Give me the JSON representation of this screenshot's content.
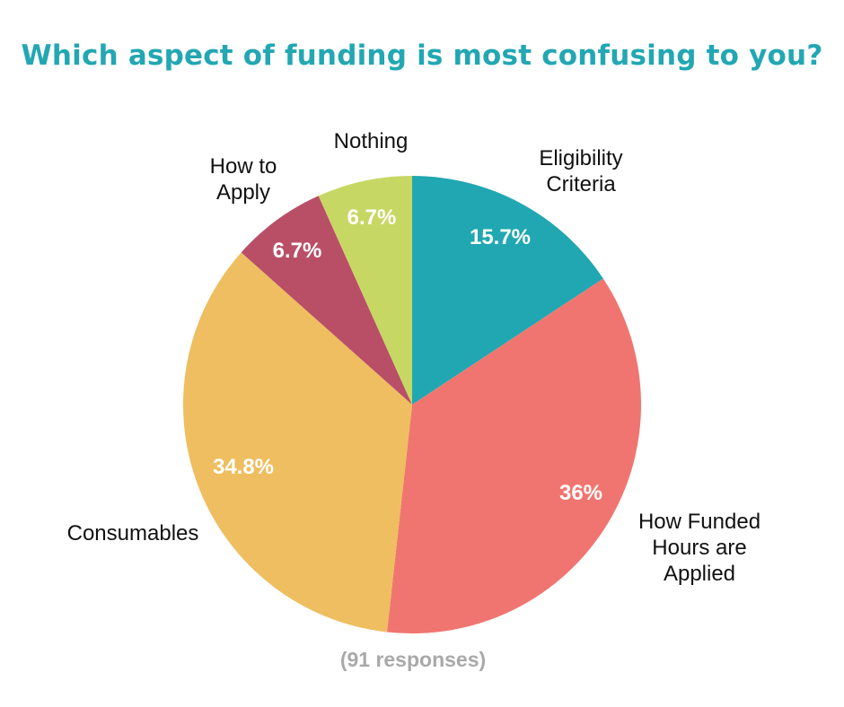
{
  "title": "Which aspect of funding is most confusing to you?",
  "footer": "(91 responses)",
  "chart_data": {
    "type": "pie",
    "title": "Which aspect of funding is most confusing to you?",
    "subtitle": "(91 responses)",
    "categories": [
      "Eligibility Criteria",
      "How Funded Hours are Applied",
      "Consumables",
      "How to Apply",
      "Nothing"
    ],
    "values": [
      15.7,
      36,
      34.8,
      6.7,
      6.7
    ],
    "value_labels": [
      "15.7%",
      "36%",
      "34.8%",
      "6.7%",
      "6.7%"
    ],
    "colors": [
      "#21a7b2",
      "#f07570",
      "#eebe60",
      "#b94f67",
      "#c6d863"
    ],
    "start_angle": "12 o'clock",
    "direction": "clockwise",
    "legend": "none (labels outside slices)"
  },
  "labels": {
    "eligibility": [
      "Eligibility",
      "Criteria"
    ],
    "funded": [
      "How Funded",
      "Hours are",
      "Applied"
    ],
    "consumables": [
      "Consumables"
    ],
    "apply": [
      "How to",
      "Apply"
    ],
    "nothing": [
      "Nothing"
    ]
  }
}
